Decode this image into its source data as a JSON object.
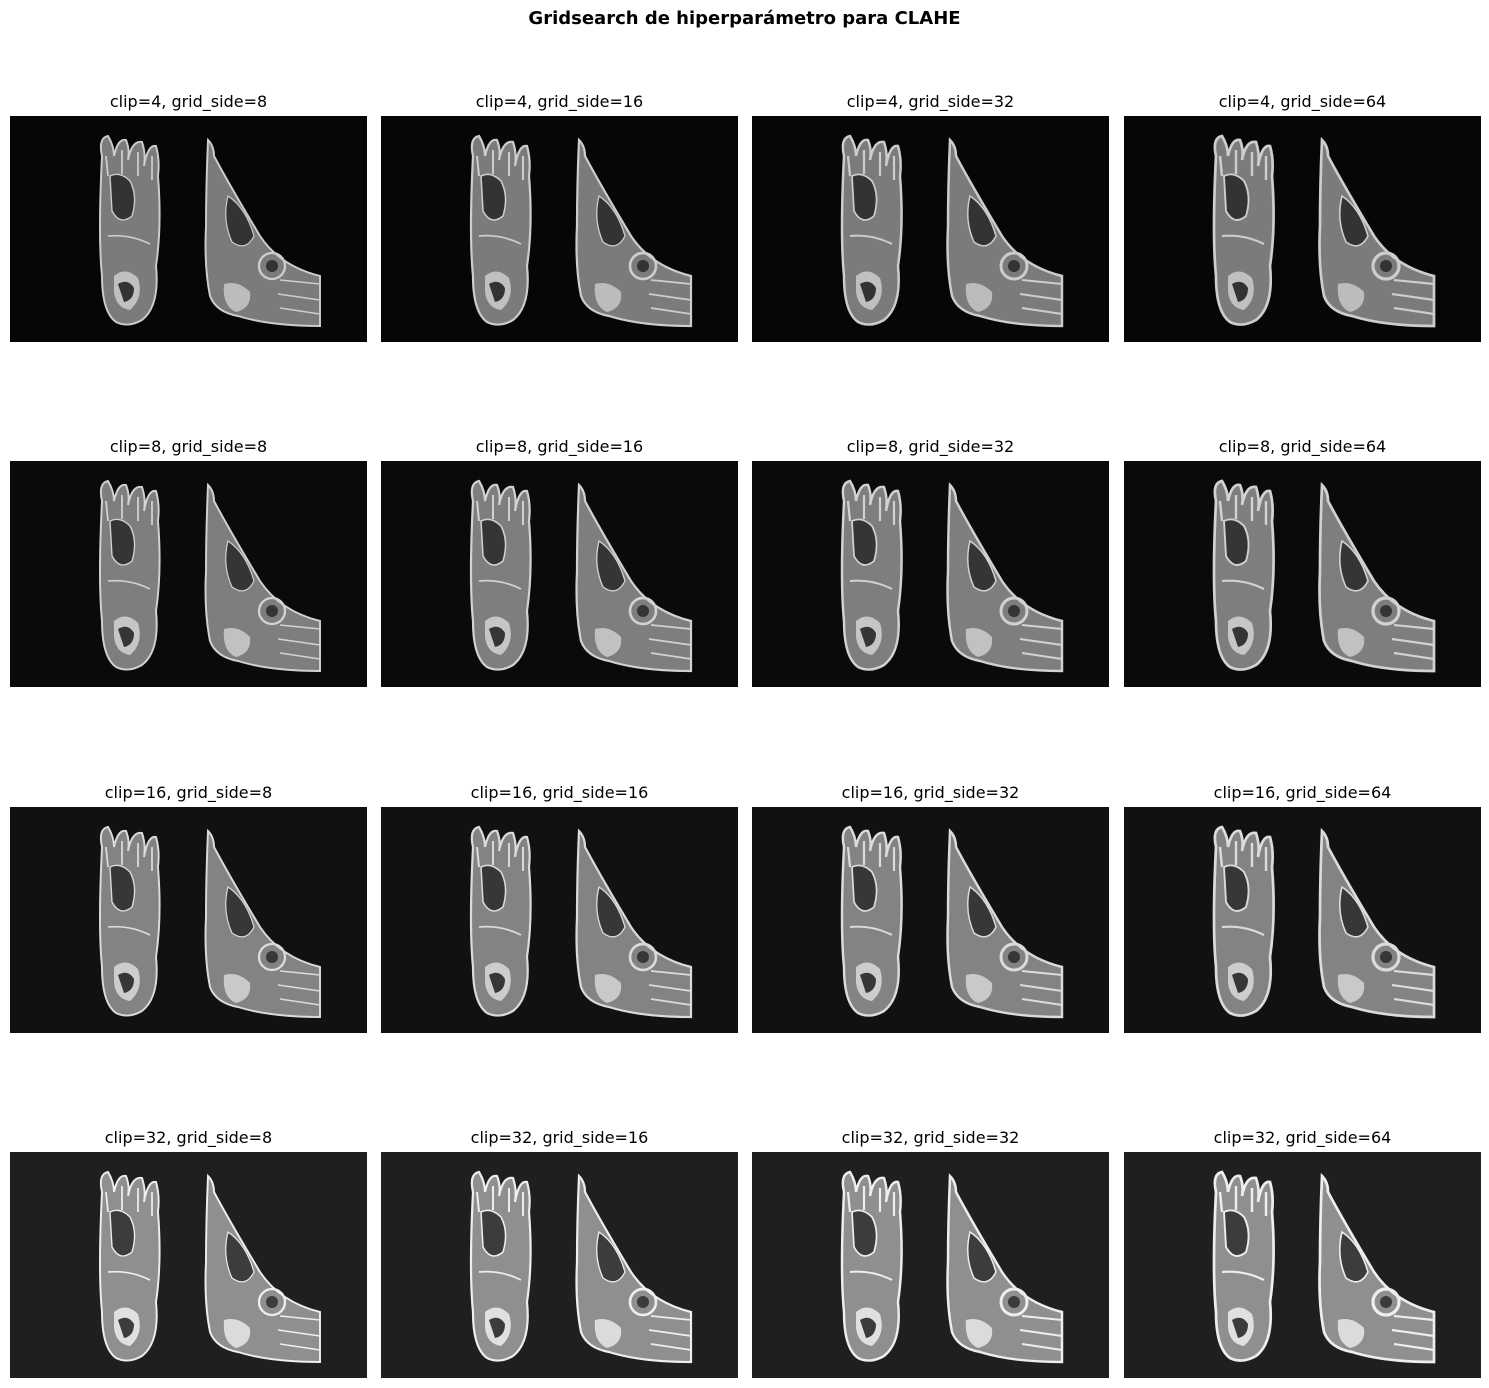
{
  "figure": {
    "title": "Gridsearch de hiperparámetro para CLAHE"
  },
  "panels": [
    {
      "title": "clip=4, grid_side=8",
      "clip": 4,
      "grid_side": 8,
      "bg": "#060606"
    },
    {
      "title": "clip=4, grid_side=16",
      "clip": 4,
      "grid_side": 16,
      "bg": "#060606"
    },
    {
      "title": "clip=4, grid_side=32",
      "clip": 4,
      "grid_side": 32,
      "bg": "#060606"
    },
    {
      "title": "clip=4, grid_side=64",
      "clip": 4,
      "grid_side": 64,
      "bg": "#060606"
    },
    {
      "title": "clip=8, grid_side=8",
      "clip": 8,
      "grid_side": 8,
      "bg": "#0a0a0a"
    },
    {
      "title": "clip=8, grid_side=16",
      "clip": 8,
      "grid_side": 16,
      "bg": "#0a0a0a"
    },
    {
      "title": "clip=8, grid_side=32",
      "clip": 8,
      "grid_side": 32,
      "bg": "#0a0a0a"
    },
    {
      "title": "clip=8, grid_side=64",
      "clip": 8,
      "grid_side": 64,
      "bg": "#0a0a0a"
    },
    {
      "title": "clip=16, grid_side=8",
      "clip": 16,
      "grid_side": 8,
      "bg": "#111111"
    },
    {
      "title": "clip=16, grid_side=16",
      "clip": 16,
      "grid_side": 16,
      "bg": "#111111"
    },
    {
      "title": "clip=16, grid_side=32",
      "clip": 16,
      "grid_side": 32,
      "bg": "#111111"
    },
    {
      "title": "clip=16, grid_side=64",
      "clip": 16,
      "grid_side": 64,
      "bg": "#111111"
    },
    {
      "title": "clip=32, grid_side=8",
      "clip": 32,
      "grid_side": 8,
      "bg": "#1f1f1f"
    },
    {
      "title": "clip=32, grid_side=16",
      "clip": 32,
      "grid_side": 16,
      "bg": "#1f1f1f"
    },
    {
      "title": "clip=32, grid_side=32",
      "clip": 32,
      "grid_side": 32,
      "bg": "#1f1f1f"
    },
    {
      "title": "clip=32, grid_side=64",
      "clip": 32,
      "grid_side": 64,
      "bg": "#1f1f1f"
    }
  ]
}
